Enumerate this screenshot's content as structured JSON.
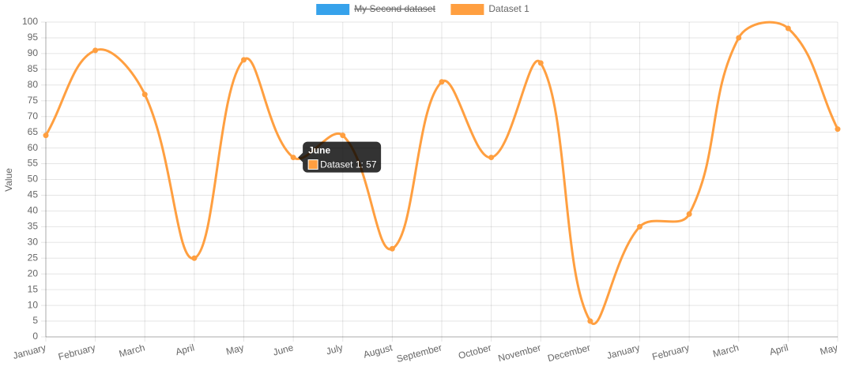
{
  "chart_data": {
    "type": "line",
    "categories": [
      "January",
      "February",
      "March",
      "April",
      "May",
      "June",
      "July",
      "August",
      "September",
      "October",
      "November",
      "December",
      "January",
      "February",
      "March",
      "April",
      "May"
    ],
    "series": [
      {
        "name": "My Second dataset",
        "color": "#36a2eb",
        "hidden": true
      },
      {
        "name": "Dataset 1",
        "color": "#ff9f40",
        "values": [
          64,
          91,
          77,
          25,
          88,
          57,
          64,
          28,
          81,
          57,
          87,
          5,
          35,
          39,
          95,
          98,
          66
        ]
      }
    ],
    "y_label": "Value",
    "ylim": [
      0,
      100
    ],
    "yticks": [
      0,
      5,
      10,
      15,
      20,
      25,
      30,
      35,
      40,
      45,
      50,
      55,
      60,
      65,
      70,
      75,
      80,
      85,
      90,
      95,
      100
    ],
    "grid": true,
    "legend": "top",
    "tooltip": {
      "title": "June",
      "label": "Dataset 1: 57"
    }
  }
}
